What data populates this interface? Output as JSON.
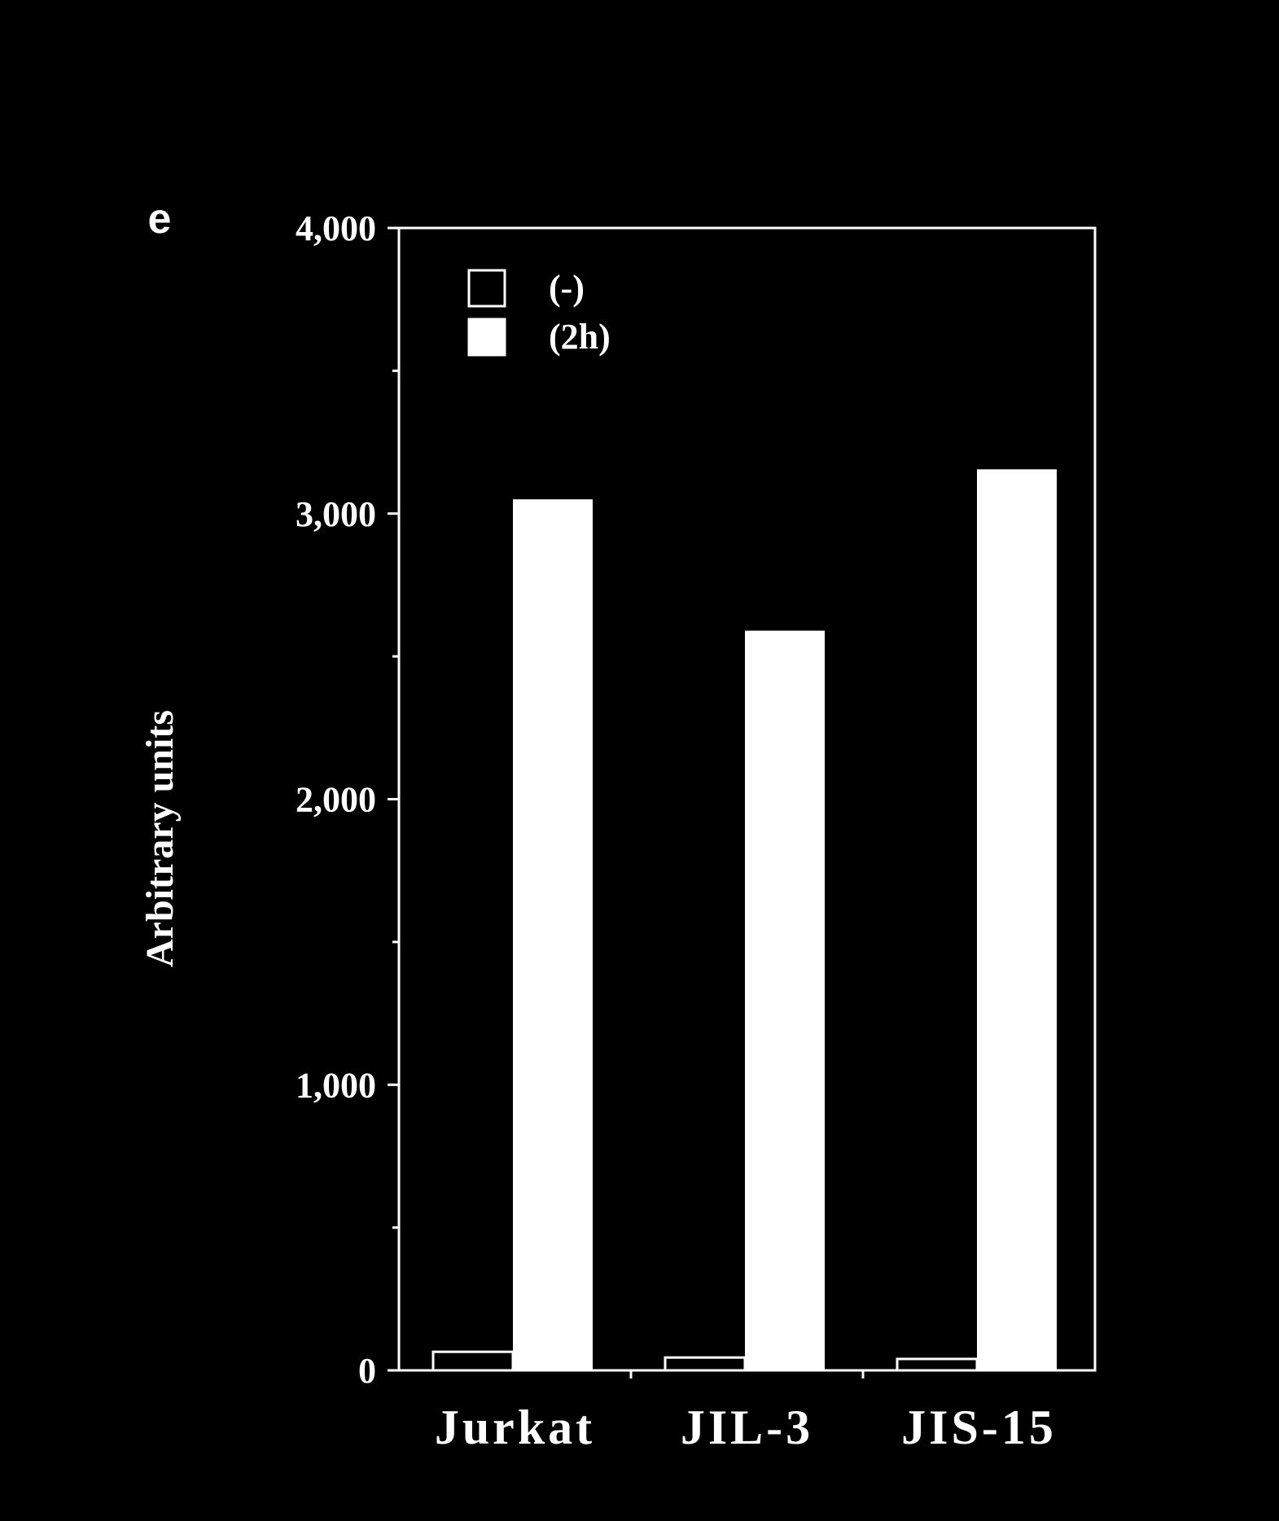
{
  "chart_data": {
    "type": "bar",
    "panel_label": "e",
    "ylabel": "Arbitrary units",
    "xlabel": "",
    "ylim": [
      0,
      4000
    ],
    "yticks": [
      0,
      1000,
      2000,
      3000,
      4000
    ],
    "ytick_labels": [
      "0",
      "1,000",
      "2,000",
      "3,000",
      "4,000"
    ],
    "categories": [
      "Jurkat",
      "JIL-3",
      "JIS-15"
    ],
    "series": [
      {
        "name": "(-)",
        "values": [
          65,
          45,
          40
        ],
        "style": "outline"
      },
      {
        "name": "(2h)",
        "values": [
          3050,
          2590,
          3155
        ],
        "style": "filled"
      }
    ],
    "legend_position": "top-left",
    "grid": false,
    "colors": {
      "background": "#000000",
      "foreground": "#ffffff"
    }
  }
}
